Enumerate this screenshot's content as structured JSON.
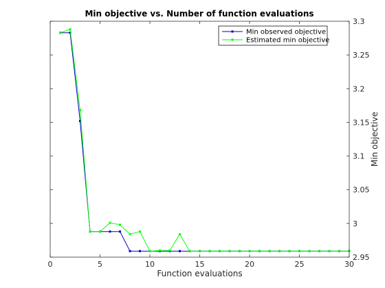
{
  "chart_data": {
    "type": "line",
    "title": "Min objective vs. Number of function evaluations",
    "xlabel": "Function evaluations",
    "ylabel": "Min objective",
    "xlim": [
      0,
      30
    ],
    "ylim": [
      2.95,
      3.3
    ],
    "xticks": [
      "0",
      "5",
      "10",
      "15",
      "20",
      "25",
      "30"
    ],
    "yticks": [
      "2.95",
      "3",
      "3.05",
      "3.1",
      "3.15",
      "3.2",
      "3.25",
      "3.3"
    ],
    "y_axis_side": "right",
    "grid": false,
    "legend": "top-right",
    "series": [
      {
        "name": "Min observed objective",
        "color": "#0000bf",
        "marker": "square",
        "x": [
          1,
          2,
          3,
          4,
          5,
          6,
          7,
          8,
          9,
          10,
          11,
          12,
          13,
          14,
          15,
          16,
          17,
          18,
          19,
          20,
          21,
          22,
          23,
          24,
          25,
          26,
          27,
          28,
          29,
          30
        ],
        "y": [
          3.283,
          3.283,
          3.152,
          2.988,
          2.988,
          2.988,
          2.988,
          2.959,
          2.959,
          2.959,
          2.959,
          2.959,
          2.959,
          2.959,
          2.959,
          2.959,
          2.959,
          2.959,
          2.959,
          2.959,
          2.959,
          2.959,
          2.959,
          2.959,
          2.959,
          2.959,
          2.959,
          2.959,
          2.959,
          2.959
        ]
      },
      {
        "name": "Estimated min objective",
        "color": "#00ff00",
        "marker": "square",
        "x": [
          1,
          2,
          3,
          4,
          5,
          6,
          7,
          8,
          9,
          10,
          11,
          12,
          13,
          14,
          15,
          16,
          17,
          18,
          19,
          20,
          21,
          22,
          23,
          24,
          25,
          26,
          27,
          28,
          29,
          30
        ],
        "y": [
          3.283,
          3.288,
          3.168,
          2.988,
          2.988,
          3.001,
          2.998,
          2.984,
          2.988,
          2.959,
          2.96,
          2.96,
          2.984,
          2.959,
          2.959,
          2.959,
          2.959,
          2.959,
          2.959,
          2.959,
          2.959,
          2.959,
          2.959,
          2.959,
          2.959,
          2.959,
          2.959,
          2.959,
          2.959,
          2.959
        ]
      }
    ]
  }
}
